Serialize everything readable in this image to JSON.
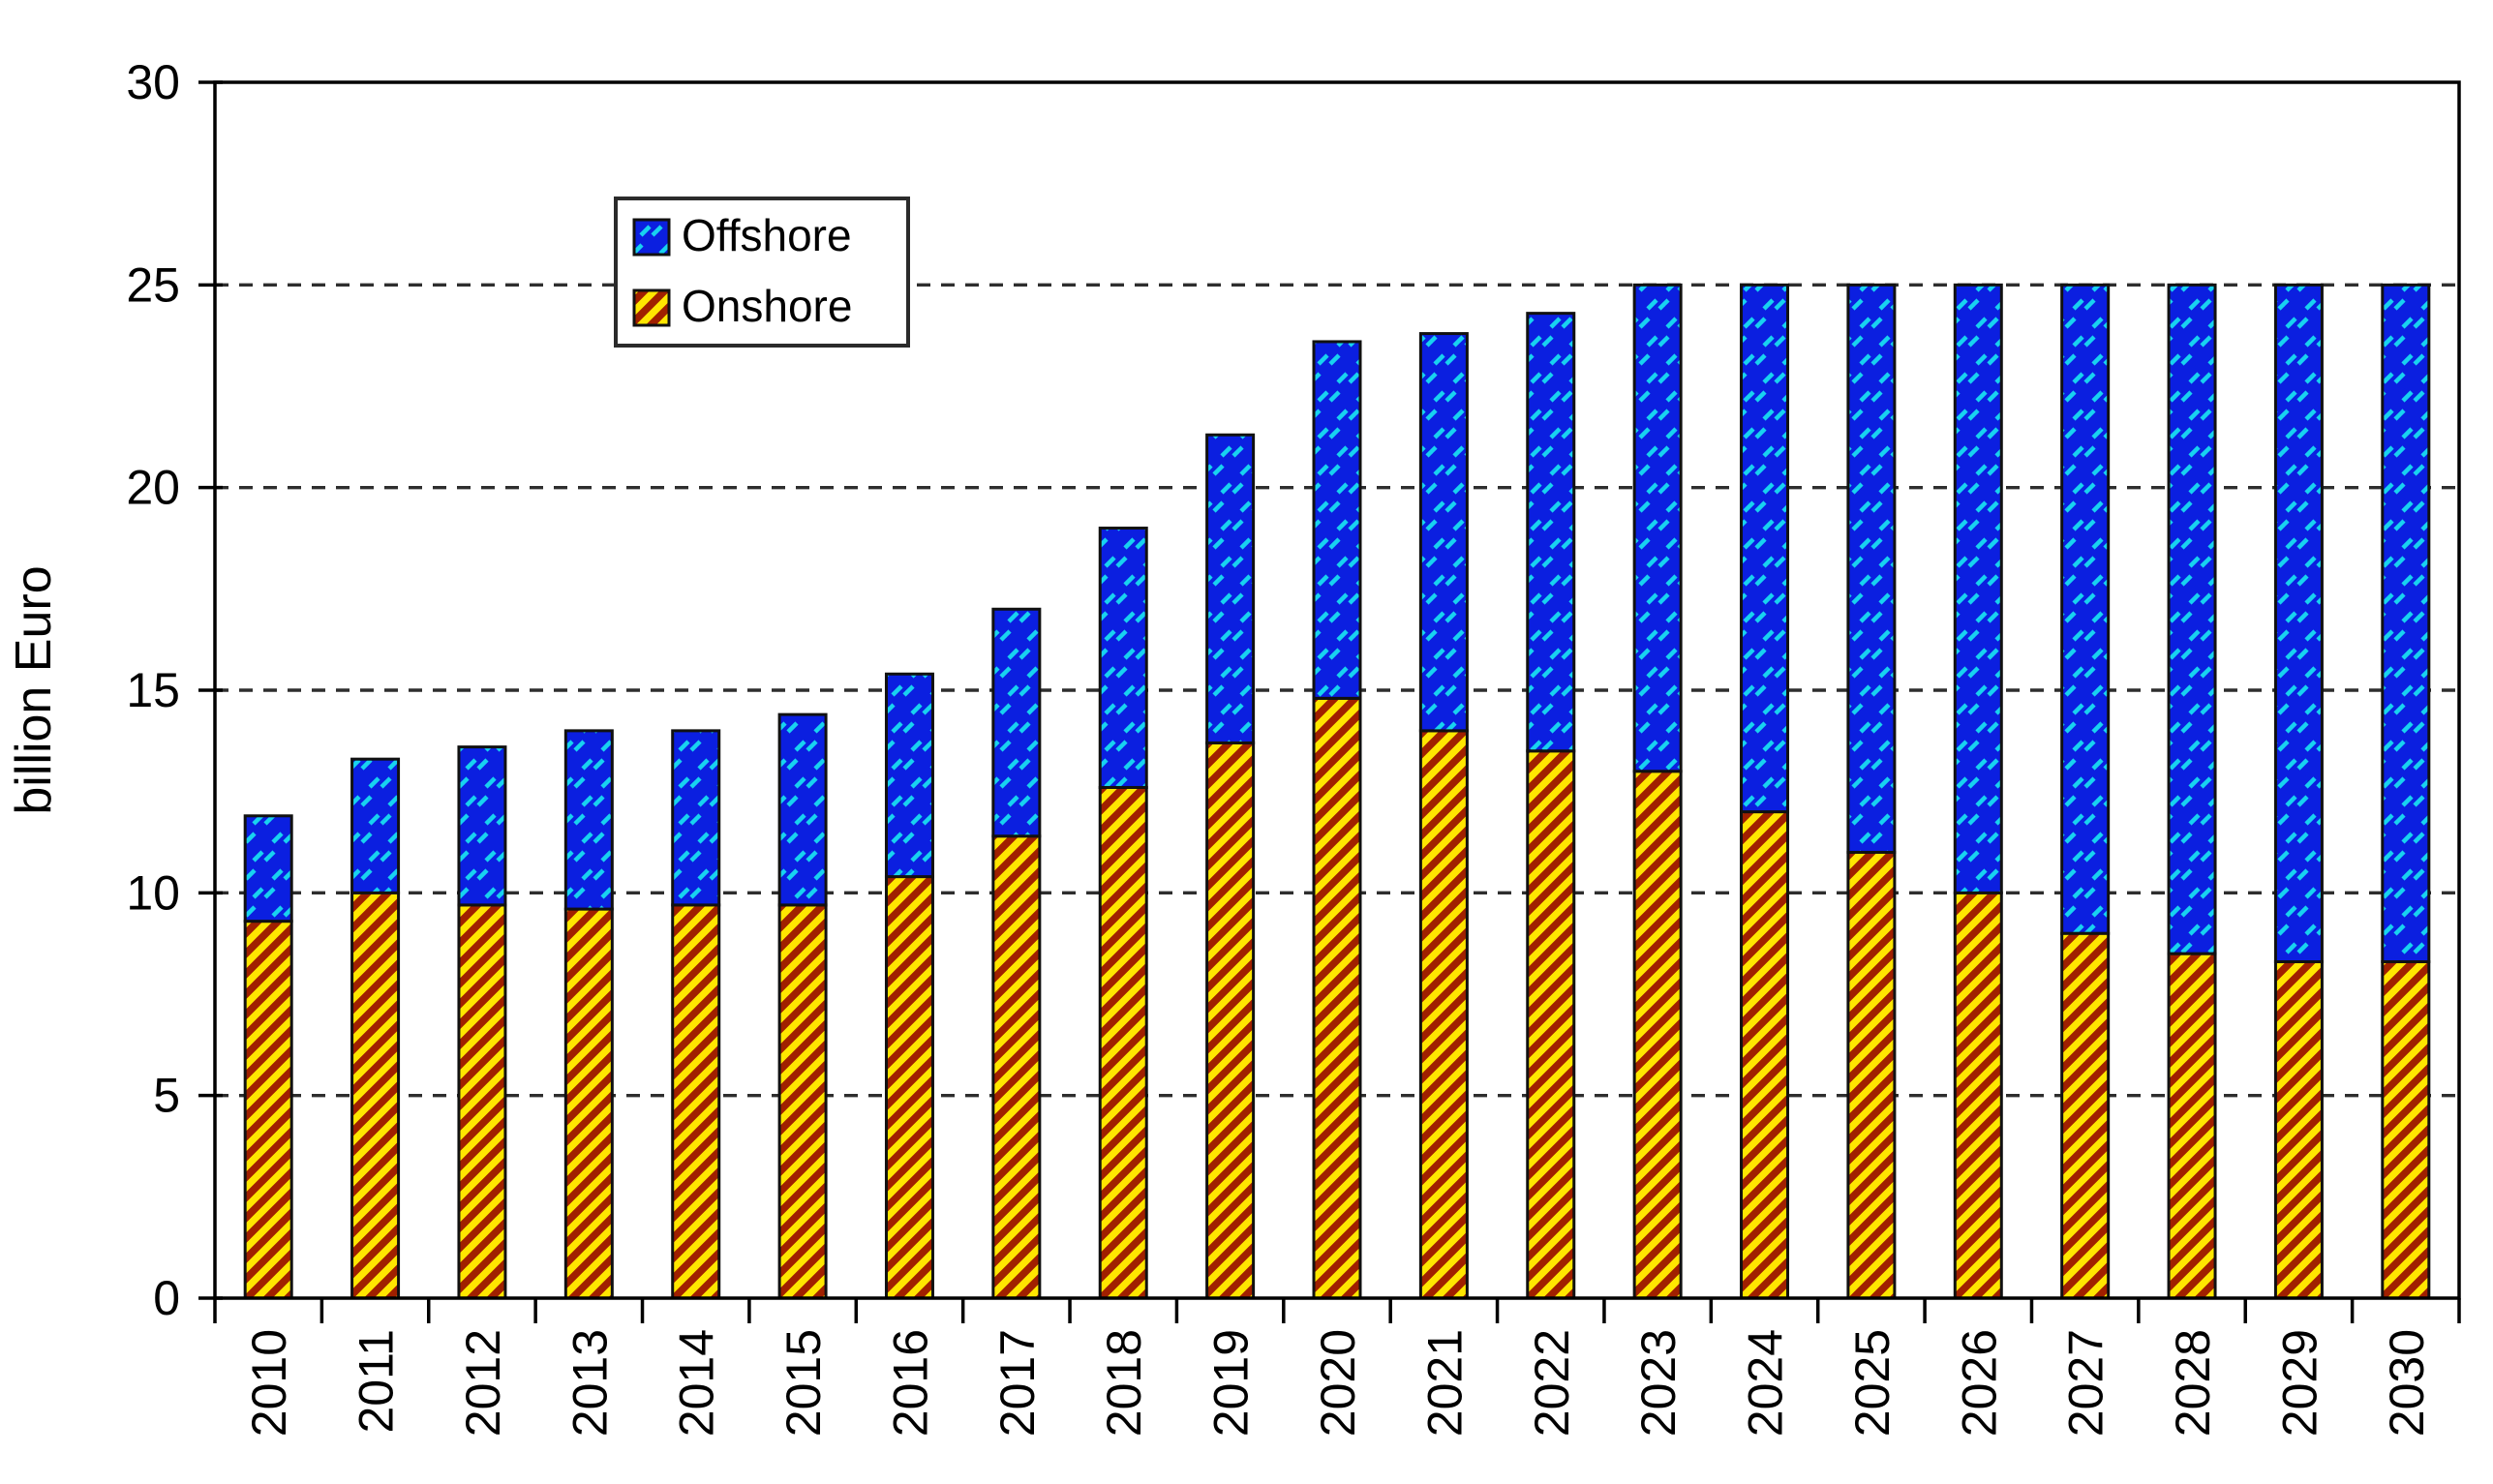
{
  "chart": {
    "y_axis_title": "billion Euro",
    "legend": {
      "items": [
        {
          "label": "Offshore",
          "series": "Offshore",
          "swatch": "blue-dash-pattern"
        },
        {
          "label": "Onshore",
          "series": "Onshore",
          "swatch": "yellow-red-hatch-pattern"
        }
      ]
    },
    "colors": {
      "background": "#ffffff",
      "axis": "#000000",
      "gridline": "#2e2e2e",
      "bar_border": "#111111",
      "onshore_fill": "#ffe600",
      "onshore_stripe": "#a02000",
      "offshore_fill": "#0b1fe0",
      "offshore_dash": "#18d2f0",
      "text": "#000000"
    }
  },
  "chart_data": {
    "type": "bar",
    "stacked": true,
    "title": "",
    "xlabel": "",
    "ylabel": "billion Euro",
    "ylim": [
      0,
      30
    ],
    "ytick_step": 5,
    "y_tick_labels": [
      "0",
      "5",
      "10",
      "15",
      "20",
      "25",
      "30"
    ],
    "grid": "horizontal dashed lines at 5, 10, 15, 20, 25; solid box border around plot",
    "legend_position": "inside upper-left",
    "categories": [
      "2010",
      "2011",
      "2012",
      "2013",
      "2014",
      "2015",
      "2016",
      "2017",
      "2018",
      "2019",
      "2020",
      "2021",
      "2022",
      "2023",
      "2024",
      "2025",
      "2026",
      "2027",
      "2028",
      "2029",
      "2030"
    ],
    "series": [
      {
        "name": "Onshore",
        "values": [
          9.3,
          10.0,
          9.7,
          9.6,
          9.7,
          9.7,
          10.4,
          11.4,
          12.6,
          13.7,
          14.8,
          14.0,
          13.5,
          13.0,
          12.0,
          11.0,
          10.0,
          9.0,
          8.5,
          8.3,
          8.3
        ]
      },
      {
        "name": "Offshore",
        "values": [
          2.6,
          3.3,
          3.9,
          4.4,
          4.3,
          4.7,
          5.0,
          5.6,
          6.4,
          7.6,
          8.8,
          9.8,
          10.8,
          12.0,
          13.0,
          14.0,
          15.0,
          16.0,
          16.5,
          16.7,
          16.7
        ]
      }
    ],
    "totals": [
      11.9,
      13.3,
      13.6,
      14.0,
      14.0,
      14.4,
      15.4,
      17.0,
      19.0,
      21.3,
      23.6,
      23.8,
      24.3,
      25.0,
      25.0,
      25.0,
      25.0,
      25.0,
      25.0,
      25.0,
      25.0
    ]
  }
}
